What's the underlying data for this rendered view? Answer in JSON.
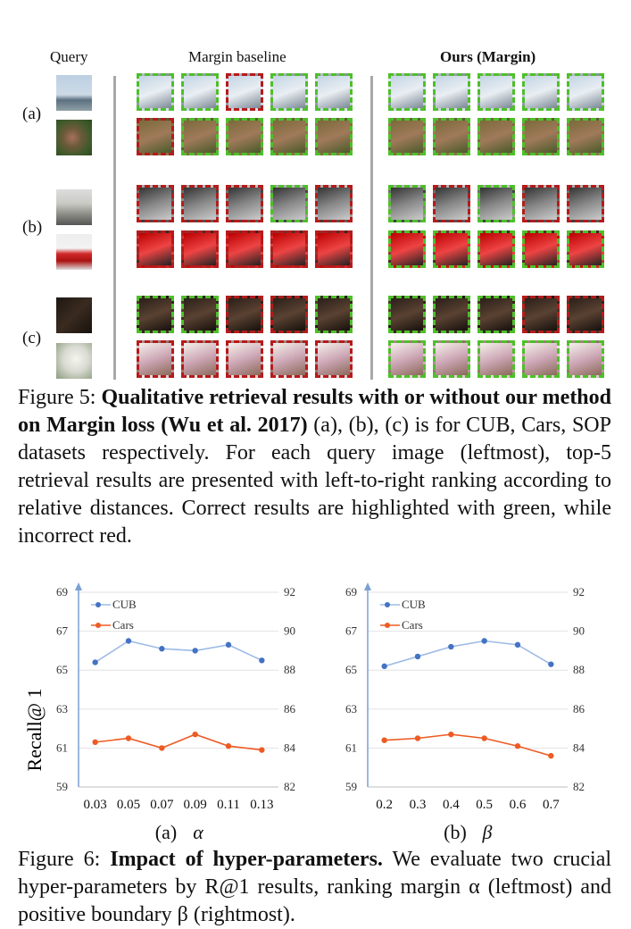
{
  "figure5": {
    "headers": {
      "query": "Query",
      "baseline": "Margin baseline",
      "ours": "Ours (Margin)"
    },
    "row_labels": [
      "(a)",
      "(b)",
      "(c)"
    ],
    "baseline_results": [
      [
        "green",
        "green",
        "red",
        "green",
        "green"
      ],
      [
        "red",
        "green",
        "green",
        "green",
        "green"
      ],
      [
        "red",
        "red",
        "red",
        "green",
        "red"
      ],
      [
        "red",
        "red",
        "red",
        "red",
        "red"
      ],
      [
        "green",
        "green",
        "red",
        "red",
        "green"
      ],
      [
        "red",
        "red",
        "red",
        "red",
        "red"
      ]
    ],
    "ours_results": [
      [
        "green",
        "green",
        "green",
        "green",
        "green"
      ],
      [
        "green",
        "green",
        "green",
        "green",
        "green"
      ],
      [
        "green",
        "red",
        "green",
        "red",
        "red"
      ],
      [
        "green",
        "green",
        "green",
        "green",
        "green"
      ],
      [
        "green",
        "green",
        "green",
        "red",
        "red"
      ],
      [
        "green",
        "green",
        "green",
        "green",
        "green"
      ]
    ],
    "caption_prefix": "Figure 5: ",
    "caption_bold": "Qualitative retrieval results with or without our method on Margin loss (Wu et al. 2017)",
    "caption_rest": " (a), (b), (c) is for CUB, Cars, SOP datasets respectively. For each query image (leftmost), top-5 retrieval results are presented with left-to-right ranking according to relative distances. Correct results are highlighted with green, while incorrect red."
  },
  "figure6": {
    "ylabel": "Recall@ 1",
    "caption_prefix": "Figure 6: ",
    "caption_bold": "Impact of hyper-parameters.",
    "caption_rest": " We evaluate two crucial hyper-parameters by R@1 results, ranking margin α",
    "caption_cut": "(leftmost) and positive boundary β (rightmost)."
  },
  "chart_data": [
    {
      "type": "line",
      "subcaption": "(a)",
      "subcaption_symbol": "α",
      "x": [
        "0.03",
        "0.05",
        "0.07",
        "0.09",
        "0.11",
        "0.13"
      ],
      "y_left_ticks": [
        59,
        61,
        63,
        65,
        67,
        69
      ],
      "y_right_ticks": [
        82,
        84,
        86,
        88,
        90,
        92
      ],
      "ylim_left": [
        59,
        69
      ],
      "ylim_right": [
        82,
        92
      ],
      "legend": "top-left",
      "series": [
        {
          "name": "CUB",
          "axis": "left",
          "color": "#4472c4",
          "line_color": "#9dbbe6",
          "values": [
            65.4,
            66.5,
            66.1,
            66.0,
            66.3,
            65.5
          ]
        },
        {
          "name": "Cars",
          "axis": "right",
          "color": "#ed5b24",
          "line_color": "#ed5b24",
          "values": [
            84.3,
            84.5,
            84.0,
            84.7,
            84.1,
            83.9
          ]
        }
      ]
    },
    {
      "type": "line",
      "subcaption": "(b)",
      "subcaption_symbol": "β",
      "x": [
        "0.2",
        "0.3",
        "0.4",
        "0.5",
        "0.6",
        "0.7"
      ],
      "y_left_ticks": [
        59,
        61,
        63,
        65,
        67,
        69
      ],
      "y_right_ticks": [
        82,
        84,
        86,
        88,
        90,
        92
      ],
      "ylim_left": [
        59,
        69
      ],
      "ylim_right": [
        82,
        92
      ],
      "legend": "top-left",
      "series": [
        {
          "name": "CUB",
          "axis": "left",
          "color": "#4472c4",
          "line_color": "#9dbbe6",
          "values": [
            65.2,
            65.7,
            66.2,
            66.5,
            66.3,
            65.3
          ]
        },
        {
          "name": "Cars",
          "axis": "right",
          "color": "#ed5b24",
          "line_color": "#ed5b24",
          "values": [
            84.4,
            84.5,
            84.7,
            84.5,
            84.1,
            83.6
          ]
        }
      ]
    }
  ]
}
